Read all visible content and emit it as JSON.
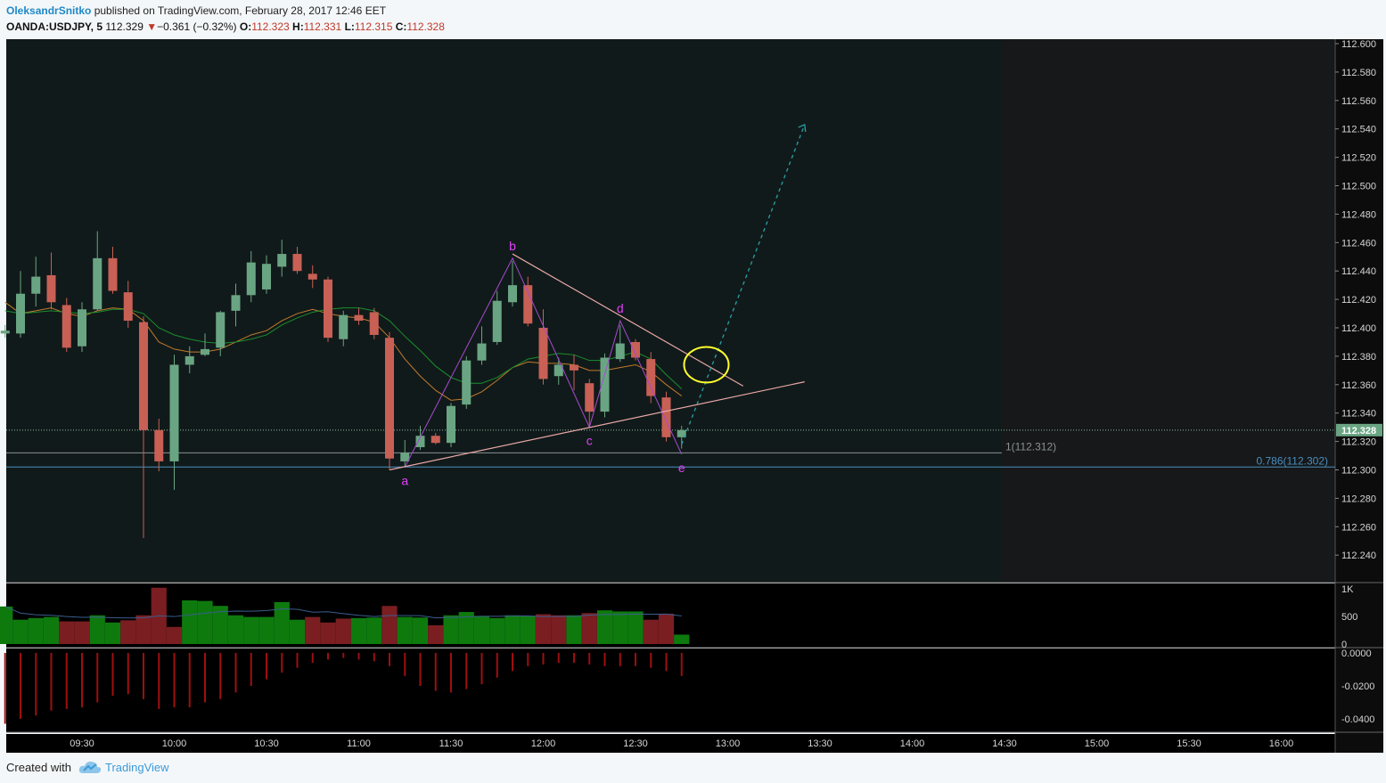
{
  "header": {
    "author": "OleksandrSnitko",
    "published_text": " published on TradingView.com, February 28, 2017 12:46 EET",
    "symbol": "OANDA:USDJPY, 5",
    "last": "112.329",
    "change_arrow": "▼",
    "change": "−0.361 (−0.32%)",
    "o_label": "O:",
    "o_value": "112.323",
    "h_label": "H:",
    "h_value": "112.331",
    "l_label": "L:",
    "l_value": "112.315",
    "c_label": "C:",
    "c_value": "112.328"
  },
  "footer": {
    "created_with": "Created with",
    "brand": "TradingView",
    "logo_icon": "tradingview-cloud-icon"
  },
  "colors": {
    "background": "#111a1a",
    "future_background": "#161819",
    "up": "#6aa583",
    "down": "#c86055",
    "volume_up": "#0e7a0e",
    "volume_down": "#7a1e22",
    "histogram": "#9e0f0f",
    "trendline": "#e8a7a7",
    "pattern": "#a64bd0",
    "label": "#e040fb",
    "fib_1": "#8b9296",
    "fib_0786": "#4a8fc0",
    "projection": "#2a9fa9",
    "circle": "#ffff2e"
  },
  "chart_data": [
    {
      "type": "candlestick",
      "title": "OANDA:USDJPY, 5",
      "x_tick_labels": [
        "09:30",
        "10:00",
        "10:30",
        "11:00",
        "11:30",
        "12:00",
        "12:30",
        "13:00",
        "13:30",
        "14:00",
        "14:30",
        "15:00",
        "15:30",
        "16:00"
      ],
      "y_tick_labels": [
        "112.600",
        "112.580",
        "112.560",
        "112.540",
        "112.520",
        "112.500",
        "112.480",
        "112.460",
        "112.440",
        "112.420",
        "112.400",
        "112.380",
        "112.360",
        "112.340",
        "112.320",
        "112.300",
        "112.280",
        "112.260",
        "112.240"
      ],
      "ylim": [
        112.22,
        112.603
      ],
      "last_price_label": "112.328",
      "candles": [
        {
          "t": "09:05",
          "o": 112.396,
          "h": 112.402,
          "l": 112.393,
          "c": 112.398
        },
        {
          "t": "09:10",
          "o": 112.396,
          "h": 112.44,
          "l": 112.393,
          "c": 112.424
        },
        {
          "t": "09:15",
          "o": 112.424,
          "h": 112.45,
          "l": 112.415,
          "c": 112.436
        },
        {
          "t": "09:20",
          "o": 112.437,
          "h": 112.453,
          "l": 112.413,
          "c": 112.418
        },
        {
          "t": "09:25",
          "o": 112.416,
          "h": 112.421,
          "l": 112.383,
          "c": 112.386
        },
        {
          "t": "09:30",
          "o": 112.387,
          "h": 112.418,
          "l": 112.383,
          "c": 112.413
        },
        {
          "t": "09:35",
          "o": 112.413,
          "h": 112.468,
          "l": 112.412,
          "c": 112.449
        },
        {
          "t": "09:40",
          "o": 112.449,
          "h": 112.457,
          "l": 112.424,
          "c": 112.426
        },
        {
          "t": "09:45",
          "o": 112.425,
          "h": 112.433,
          "l": 112.4,
          "c": 112.405
        },
        {
          "t": "09:50",
          "o": 112.404,
          "h": 112.408,
          "l": 112.252,
          "c": 112.328
        },
        {
          "t": "09:55",
          "o": 112.328,
          "h": 112.336,
          "l": 112.299,
          "c": 112.306
        },
        {
          "t": "10:00",
          "o": 112.306,
          "h": 112.381,
          "l": 112.286,
          "c": 112.374
        },
        {
          "t": "10:05",
          "o": 112.374,
          "h": 112.387,
          "l": 112.368,
          "c": 112.38
        },
        {
          "t": "10:10",
          "o": 112.381,
          "h": 112.396,
          "l": 112.38,
          "c": 112.385
        },
        {
          "t": "10:15",
          "o": 112.386,
          "h": 112.412,
          "l": 112.38,
          "c": 112.411
        },
        {
          "t": "10:20",
          "o": 112.412,
          "h": 112.431,
          "l": 112.401,
          "c": 112.423
        },
        {
          "t": "10:25",
          "o": 112.423,
          "h": 112.454,
          "l": 112.418,
          "c": 112.446
        },
        {
          "t": "10:30",
          "o": 112.427,
          "h": 112.451,
          "l": 112.424,
          "c": 112.445
        },
        {
          "t": "10:35",
          "o": 112.443,
          "h": 112.462,
          "l": 112.436,
          "c": 112.452
        },
        {
          "t": "10:40",
          "o": 112.452,
          "h": 112.457,
          "l": 112.438,
          "c": 112.44
        },
        {
          "t": "10:45",
          "o": 112.438,
          "h": 112.444,
          "l": 112.428,
          "c": 112.434
        },
        {
          "t": "10:50",
          "o": 112.434,
          "h": 112.436,
          "l": 112.39,
          "c": 112.393
        },
        {
          "t": "10:55",
          "o": 112.392,
          "h": 112.412,
          "l": 112.387,
          "c": 112.409
        },
        {
          "t": "11:00",
          "o": 112.409,
          "h": 112.414,
          "l": 112.402,
          "c": 112.405
        },
        {
          "t": "11:05",
          "o": 112.411,
          "h": 112.414,
          "l": 112.392,
          "c": 112.395
        },
        {
          "t": "11:10",
          "o": 112.393,
          "h": 112.397,
          "l": 112.3,
          "c": 112.308
        },
        {
          "t": "11:15",
          "o": 112.306,
          "h": 112.321,
          "l": 112.302,
          "c": 112.312
        },
        {
          "t": "11:20",
          "o": 112.316,
          "h": 112.331,
          "l": 112.314,
          "c": 112.324
        },
        {
          "t": "11:25",
          "o": 112.324,
          "h": 112.326,
          "l": 112.318,
          "c": 112.319
        },
        {
          "t": "11:30",
          "o": 112.319,
          "h": 112.347,
          "l": 112.316,
          "c": 112.345
        },
        {
          "t": "11:35",
          "o": 112.346,
          "h": 112.38,
          "l": 112.343,
          "c": 112.377
        },
        {
          "t": "11:40",
          "o": 112.377,
          "h": 112.401,
          "l": 112.374,
          "c": 112.389
        },
        {
          "t": "11:45",
          "o": 112.39,
          "h": 112.426,
          "l": 112.388,
          "c": 112.419
        },
        {
          "t": "11:50",
          "o": 112.418,
          "h": 112.447,
          "l": 112.415,
          "c": 112.43
        },
        {
          "t": "11:55",
          "o": 112.43,
          "h": 112.436,
          "l": 112.401,
          "c": 112.403
        },
        {
          "t": "12:00",
          "o": 112.4,
          "h": 112.413,
          "l": 112.36,
          "c": 112.364
        },
        {
          "t": "12:05",
          "o": 112.366,
          "h": 112.379,
          "l": 112.36,
          "c": 112.374
        },
        {
          "t": "12:10",
          "o": 112.374,
          "h": 112.381,
          "l": 112.356,
          "c": 112.37
        },
        {
          "t": "12:15",
          "o": 112.361,
          "h": 112.364,
          "l": 112.331,
          "c": 112.341
        },
        {
          "t": "12:20",
          "o": 112.341,
          "h": 112.382,
          "l": 112.337,
          "c": 112.379
        },
        {
          "t": "12:25",
          "o": 112.378,
          "h": 112.402,
          "l": 112.376,
          "c": 112.389
        },
        {
          "t": "12:30",
          "o": 112.39,
          "h": 112.392,
          "l": 112.377,
          "c": 112.379
        },
        {
          "t": "12:35",
          "o": 112.378,
          "h": 112.383,
          "l": 112.347,
          "c": 112.352
        },
        {
          "t": "12:40",
          "o": 112.351,
          "h": 112.355,
          "l": 112.32,
          "c": 112.323
        },
        {
          "t": "12:45",
          "o": 112.323,
          "h": 112.331,
          "l": 112.315,
          "c": 112.328
        }
      ],
      "moving_averages": [
        {
          "color": "#c07a2e",
          "values": [
            112.418,
            112.41,
            112.412,
            112.414,
            112.41,
            112.408,
            112.412,
            112.414,
            112.413,
            112.405,
            112.39,
            112.385,
            112.383,
            112.383,
            112.385,
            112.39,
            112.395,
            112.398,
            112.405,
            112.41,
            112.413,
            112.41,
            112.408,
            112.407,
            112.404,
            112.393,
            112.378,
            112.366,
            112.356,
            112.349,
            112.35,
            112.355,
            112.363,
            112.372,
            112.376,
            112.375,
            112.375,
            112.374,
            112.37,
            112.37,
            112.372,
            112.374,
            112.369,
            112.36,
            112.352
          ]
        },
        {
          "color": "#1a8f2e",
          "values": [
            112.412,
            112.41,
            112.411,
            112.412,
            112.411,
            112.41,
            112.411,
            112.413,
            112.413,
            112.41,
            112.4,
            112.395,
            112.392,
            112.39,
            112.389,
            112.39,
            112.392,
            112.395,
            112.402,
            112.407,
            112.411,
            112.413,
            112.414,
            112.414,
            112.412,
            112.405,
            112.394,
            112.384,
            112.373,
            112.365,
            112.361,
            112.361,
            112.365,
            112.372,
            112.378,
            112.38,
            112.382,
            112.381,
            112.377,
            112.377,
            112.38,
            112.383,
            112.378,
            112.367,
            112.357
          ]
        }
      ],
      "trendlines": [
        {
          "from": {
            "t": "11:10",
            "p": 112.3
          },
          "to": {
            "t": "13:25",
            "p": 112.362
          }
        },
        {
          "from": {
            "t": "11:50",
            "p": 112.452
          },
          "to": {
            "t": "13:05",
            "p": 112.359
          }
        }
      ],
      "pattern_points": [
        {
          "label": "a",
          "t": "11:15",
          "p": 112.302
        },
        {
          "label": "b",
          "t": "11:50",
          "p": 112.449
        },
        {
          "label": "c",
          "t": "12:15",
          "p": 112.33
        },
        {
          "label": "d",
          "t": "12:25",
          "p": 112.405
        },
        {
          "label": "e",
          "t": "12:45",
          "p": 112.311
        }
      ],
      "fib_levels": [
        {
          "label": "1(112.312)",
          "value": 112.312
        },
        {
          "label": "0.786(112.302)",
          "value": 112.302
        }
      ],
      "projection": {
        "from": {
          "t": "12:45",
          "p": 112.318
        },
        "to": {
          "t": "13:25",
          "p": 112.543
        }
      },
      "circle_marker": {
        "t": "13:00",
        "p": 112.374
      }
    },
    {
      "type": "bar",
      "title": "Volume",
      "y_tick_labels": [
        "1K",
        "500",
        "0"
      ],
      "ylim": [
        0,
        1000
      ],
      "values": [
        680,
        440,
        470,
        490,
        410,
        410,
        520,
        390,
        430,
        520,
        1020,
        310,
        790,
        780,
        690,
        520,
        490,
        490,
        760,
        440,
        490,
        390,
        460,
        470,
        480,
        690,
        490,
        480,
        340,
        520,
        580,
        510,
        470,
        520,
        510,
        540,
        520,
        520,
        560,
        610,
        590,
        590,
        440,
        550,
        170
      ],
      "directions": [
        "up",
        "up",
        "up",
        "up",
        "down",
        "down",
        "up",
        "up",
        "down",
        "down",
        "down",
        "down",
        "up",
        "up",
        "up",
        "up",
        "up",
        "up",
        "up",
        "up",
        "down",
        "down",
        "down",
        "up",
        "up",
        "down",
        "up",
        "up",
        "down",
        "up",
        "up",
        "up",
        "up",
        "up",
        "up",
        "down",
        "down",
        "up",
        "down",
        "up",
        "up",
        "up",
        "down",
        "down",
        "up"
      ]
    },
    {
      "type": "bar",
      "title": "Oscillator",
      "y_tick_labels": [
        "0.0000",
        "-0.0200",
        "-0.0400"
      ],
      "ylim": [
        -0.0466,
        0.0017
      ],
      "values": [
        -0.043,
        -0.04,
        -0.038,
        -0.035,
        -0.034,
        -0.033,
        -0.03,
        -0.026,
        -0.025,
        -0.028,
        -0.034,
        -0.033,
        -0.033,
        -0.03,
        -0.028,
        -0.024,
        -0.02,
        -0.016,
        -0.012,
        -0.009,
        -0.006,
        -0.004,
        -0.003,
        -0.004,
        -0.005,
        -0.008,
        -0.014,
        -0.02,
        -0.023,
        -0.024,
        -0.022,
        -0.019,
        -0.015,
        -0.011,
        -0.008,
        -0.007,
        -0.006,
        -0.006,
        -0.007,
        -0.008,
        -0.008,
        -0.008,
        -0.009,
        -0.011,
        -0.014
      ]
    }
  ]
}
